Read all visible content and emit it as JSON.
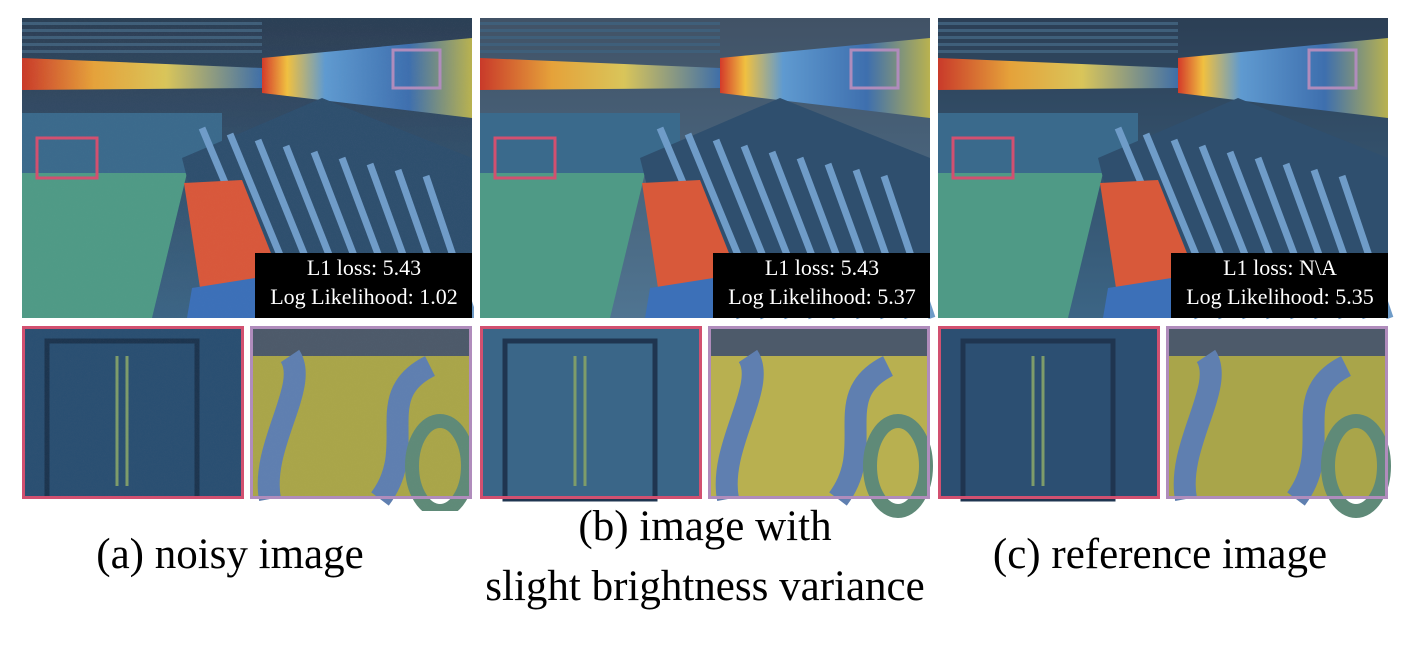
{
  "panels": [
    {
      "l1_loss": "L1 loss: 5.43",
      "log_likelihood": "Log Likelihood: 1.02",
      "caption": [
        "(a) noisy image"
      ]
    },
    {
      "l1_loss": "L1 loss: 5.43",
      "log_likelihood": "Log Likelihood: 5.37",
      "caption": [
        "(b) image with",
        "slight brightness variance"
      ]
    },
    {
      "l1_loss": "L1 loss: N\\A",
      "log_likelihood": "Log Likelihood: 5.35",
      "caption": [
        "(c) reference image"
      ]
    }
  ]
}
